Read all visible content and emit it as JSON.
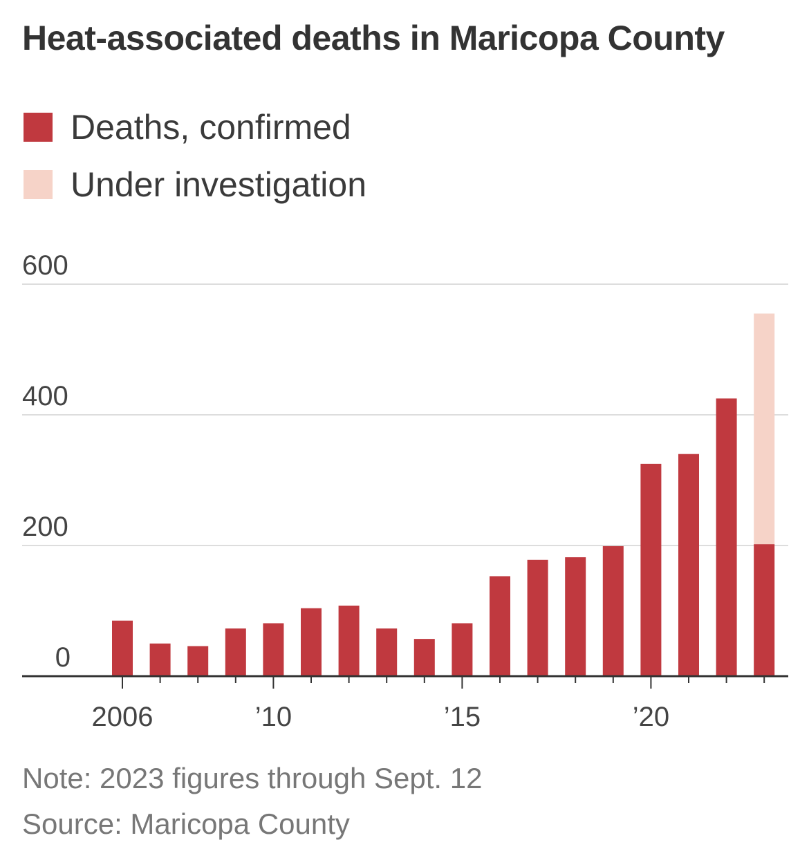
{
  "chart_data": {
    "type": "bar",
    "title": "Heat-associated deaths in Maricopa County",
    "xlabel": "",
    "ylabel": "",
    "ylim": [
      0,
      600
    ],
    "yticks": [
      0,
      200,
      400,
      600
    ],
    "categories": [
      "2006",
      "2007",
      "2008",
      "2009",
      "2010",
      "2011",
      "2012",
      "2013",
      "2014",
      "2015",
      "2016",
      "2017",
      "2018",
      "2019",
      "2020",
      "2021",
      "2022",
      "2023"
    ],
    "x_tick_labels": [
      {
        "category": "2006",
        "label": "2006"
      },
      {
        "category": "2010",
        "label": "’10"
      },
      {
        "category": "2015",
        "label": "’15"
      },
      {
        "category": "2020",
        "label": "’20"
      }
    ],
    "series": [
      {
        "name": "Deaths, confirmed",
        "color": "#c0393f",
        "values": [
          85,
          50,
          46,
          73,
          81,
          104,
          108,
          73,
          57,
          81,
          153,
          178,
          182,
          199,
          325,
          340,
          425,
          202
        ]
      },
      {
        "name": "Under investigation",
        "color": "#f6d3c8",
        "values": [
          0,
          0,
          0,
          0,
          0,
          0,
          0,
          0,
          0,
          0,
          0,
          0,
          0,
          0,
          0,
          0,
          0,
          353
        ]
      }
    ],
    "stacked": true,
    "grid": true,
    "legend": "top-left",
    "notes": [
      "Note: 2023 figures through Sept. 12",
      "Source: Maricopa County"
    ]
  }
}
